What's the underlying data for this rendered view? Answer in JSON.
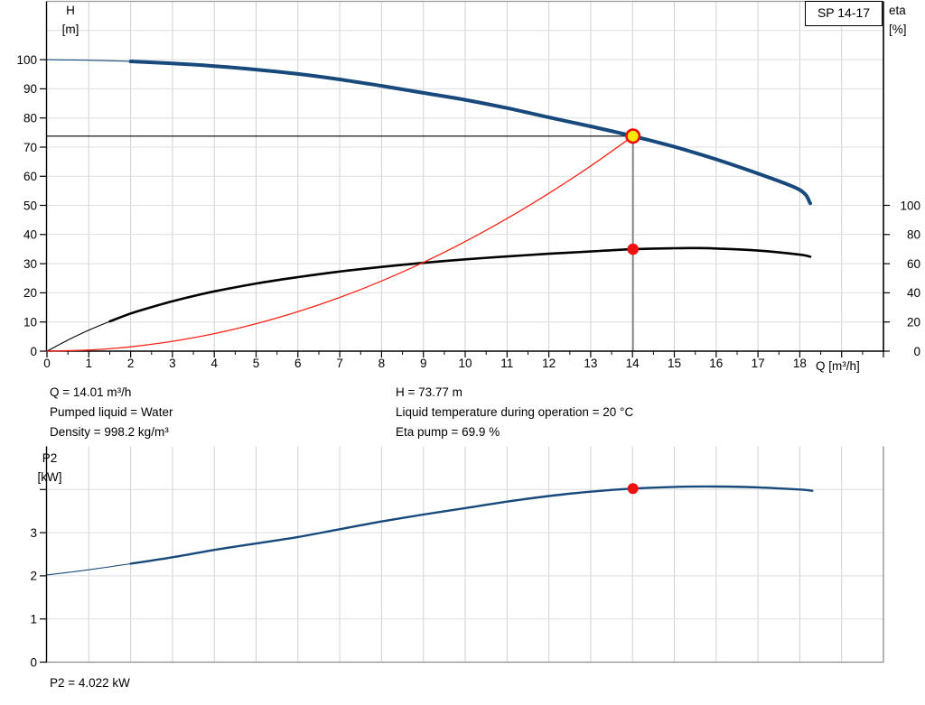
{
  "pump_model": "SP 14-17",
  "top_chart": {
    "left_axis": {
      "line1": "H",
      "line2": "[m]"
    },
    "right_axis": {
      "line1": "eta",
      "line2": "[%]"
    },
    "x_axis_label": "Q [m³/h]"
  },
  "bottom_chart": {
    "left_axis": {
      "line1": "P2",
      "line2": "[kW]"
    }
  },
  "info": {
    "left": [
      "Q = 14.01 m³/h",
      "Pumped liquid = Water",
      "Density = 998.2 kg/m³"
    ],
    "right": [
      "H = 73.77 m",
      "Liquid temperature during operation = 20 °C",
      "Eta pump = 69.9 %"
    ],
    "p2": "P2 = 4.022 kW"
  },
  "colors": {
    "head_curve": "#17497c",
    "efficiency_curve": "#000000",
    "system_curve": "#fa2418",
    "power_curve": "#17497c",
    "duty_marker_fill": "#ffe70a",
    "duty_marker_ring": "#f00a00",
    "point_red": "#ee1111",
    "grid": "#d6d6d6",
    "border_gray": "#8c8c8c"
  },
  "chart_data": [
    {
      "type": "line",
      "title": "SP 14-17",
      "xlabel": "Q [m³/h]",
      "x_range": [
        0,
        20
      ],
      "x_ticks_labeled": [
        0,
        1,
        2,
        3,
        4,
        5,
        6,
        7,
        8,
        9,
        10,
        11,
        12,
        13,
        14,
        15,
        16,
        17,
        18
      ],
      "x_minor_step": 0.5,
      "y_left": {
        "label": "H [m]",
        "range": [
          0,
          120
        ],
        "ticks": [
          0,
          10,
          20,
          30,
          40,
          50,
          60,
          70,
          80,
          90,
          100
        ]
      },
      "y_right": {
        "label": "eta [%]",
        "range": [
          0,
          240
        ],
        "ticks": [
          0,
          20,
          40,
          60,
          80,
          100
        ]
      },
      "grid": true,
      "series": [
        {
          "name": "head-curve",
          "yaxis": "left",
          "points": [
            [
              0,
              100
            ],
            [
              0.5,
              99.9
            ],
            [
              1,
              99.8
            ],
            [
              2,
              99.4
            ],
            [
              3,
              98.7
            ],
            [
              4,
              97.8
            ],
            [
              5,
              96.6
            ],
            [
              6,
              95.1
            ],
            [
              7,
              93.2
            ],
            [
              8,
              91.0
            ],
            [
              9,
              88.6
            ],
            [
              10,
              86.2
            ],
            [
              11,
              83.4
            ],
            [
              12,
              80.2
            ],
            [
              13,
              77.1
            ],
            [
              14.01,
              73.77
            ],
            [
              15,
              70.1
            ],
            [
              16,
              65.8
            ],
            [
              17,
              60.9
            ],
            [
              18,
              55.3
            ],
            [
              18.25,
              50.7
            ]
          ]
        },
        {
          "name": "efficiency-curve",
          "yaxis": "right",
          "points": [
            [
              0,
              0
            ],
            [
              0.5,
              7.6
            ],
            [
              1,
              14.4
            ],
            [
              1.5,
              20.4
            ],
            [
              2,
              25.8
            ],
            [
              2.5,
              30.2
            ],
            [
              3,
              34.2
            ],
            [
              3.5,
              37.8
            ],
            [
              4,
              41.0
            ],
            [
              5,
              46.4
            ],
            [
              6,
              50.8
            ],
            [
              7,
              54.6
            ],
            [
              8,
              57.8
            ],
            [
              9,
              60.6
            ],
            [
              10,
              63.0
            ],
            [
              11,
              65.0
            ],
            [
              12,
              66.8
            ],
            [
              13,
              68.4
            ],
            [
              14.01,
              69.9
            ],
            [
              15,
              70.6
            ],
            [
              15.5,
              70.7
            ],
            [
              16,
              70.4
            ],
            [
              17,
              69.0
            ],
            [
              18,
              66.2
            ],
            [
              18.25,
              64.8
            ]
          ]
        },
        {
          "name": "system-curve",
          "yaxis": "left",
          "points": [
            [
              0,
              0
            ],
            [
              1,
              0.38
            ],
            [
              2,
              1.5
            ],
            [
              3,
              3.38
            ],
            [
              4,
              6.01
            ],
            [
              5,
              9.4
            ],
            [
              6,
              13.53
            ],
            [
              7,
              18.42
            ],
            [
              8,
              24.06
            ],
            [
              9,
              30.45
            ],
            [
              10,
              37.59
            ],
            [
              11,
              45.49
            ],
            [
              12,
              54.13
            ],
            [
              13,
              63.53
            ],
            [
              14.01,
              73.77
            ]
          ]
        }
      ],
      "duty_point": {
        "q": 14.01,
        "h": 73.77,
        "eta": 69.9
      }
    },
    {
      "type": "line",
      "title": "P2",
      "x_range": [
        0,
        20
      ],
      "y_left": {
        "label": "P2 [kW]",
        "range": [
          0,
          5
        ],
        "ticks": [
          0,
          1,
          2,
          3,
          4
        ],
        "tick_labels": [
          "0",
          "1",
          "2",
          "3",
          ""
        ]
      },
      "grid": true,
      "series": [
        {
          "name": "power-curve",
          "points": [
            [
              0,
              2.02
            ],
            [
              1,
              2.14
            ],
            [
              2,
              2.28
            ],
            [
              3,
              2.43
            ],
            [
              4,
              2.6
            ],
            [
              5,
              2.75
            ],
            [
              6,
              2.9
            ],
            [
              7,
              3.08
            ],
            [
              8,
              3.26
            ],
            [
              9,
              3.42
            ],
            [
              10,
              3.57
            ],
            [
              11,
              3.72
            ],
            [
              12,
              3.85
            ],
            [
              13,
              3.95
            ],
            [
              14.01,
              4.022
            ],
            [
              15,
              4.06
            ],
            [
              16,
              4.07
            ],
            [
              17,
              4.05
            ],
            [
              18,
              4.0
            ],
            [
              18.3,
              3.97
            ]
          ]
        }
      ],
      "duty_point": {
        "q": 14.01,
        "p2": 4.022
      }
    }
  ]
}
